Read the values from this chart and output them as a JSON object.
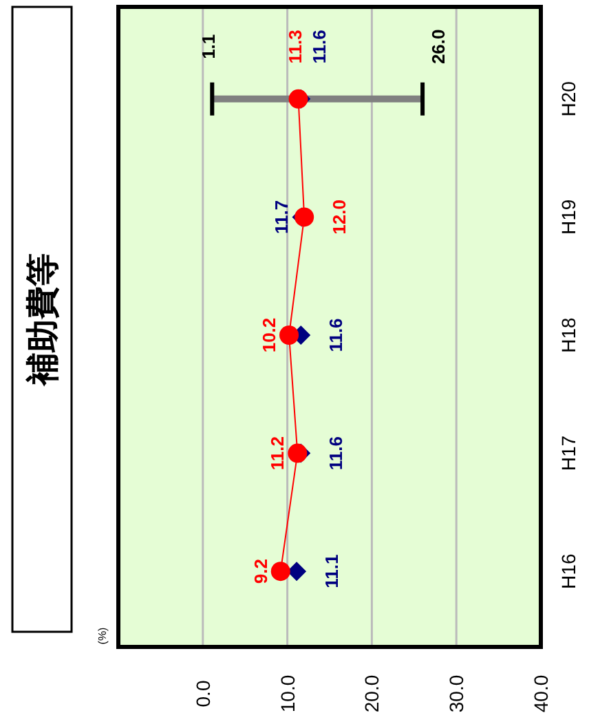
{
  "chart_data": {
    "type": "line",
    "title": "補助費等",
    "orientation": "horizontal",
    "categories": [
      "H20",
      "H19",
      "H18",
      "H17",
      "H16"
    ],
    "xlim": [
      -10,
      40
    ],
    "xticks": [
      {
        "value": 0,
        "label": "0.0"
      },
      {
        "value": 10,
        "label": "10.0"
      },
      {
        "value": 20,
        "label": "20.0"
      },
      {
        "value": 30,
        "label": "30.0"
      },
      {
        "value": 40,
        "label": "40.0"
      }
    ],
    "grid": "x",
    "series": [
      {
        "color": "#000080",
        "type": "scatter",
        "marker": "diamond",
        "values": [
          11.6,
          11.7,
          11.6,
          11.6,
          11.1
        ],
        "value_labels": [
          "11.6",
          "11.7",
          "11.6",
          "11.6",
          "11.1"
        ],
        "errors": [
          [
            1.1,
            26.0
          ],
          null,
          null,
          null,
          null
        ]
      },
      {
        "color": "#ff0000",
        "type": "line",
        "marker": "circle",
        "values": [
          11.3,
          12.0,
          10.2,
          11.2,
          9.2
        ],
        "value_labels": [
          "11.3",
          "12.0",
          "10.2",
          "11.2",
          "9.2"
        ]
      }
    ],
    "annotations": [
      "(%)",
      {
        "text": "1.1",
        "x": 1.1,
        "y": "H20"
      },
      {
        "text": "26.0",
        "x": 26.0,
        "y": "H20"
      }
    ]
  }
}
